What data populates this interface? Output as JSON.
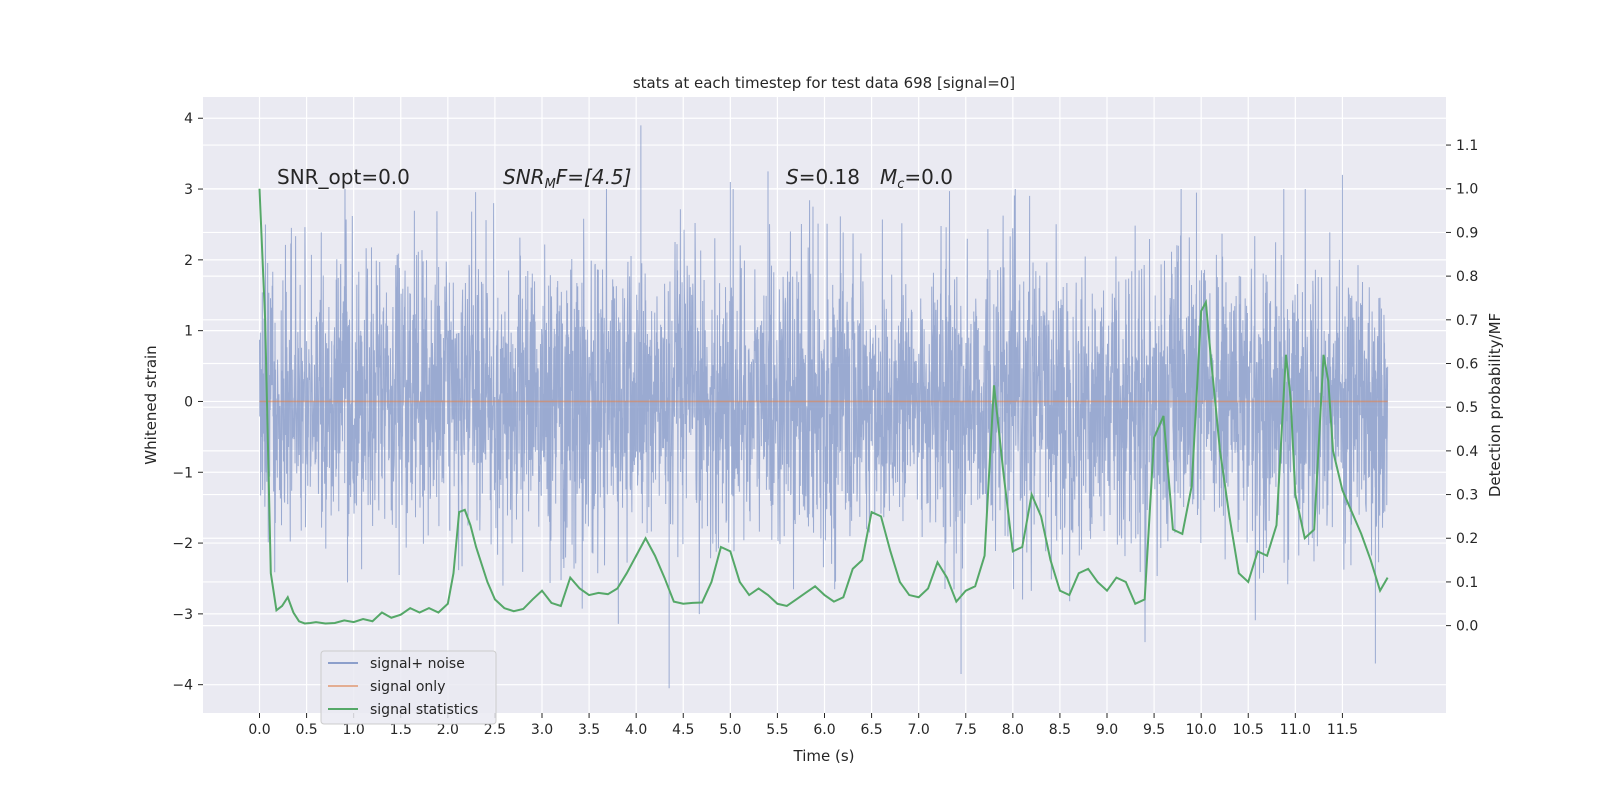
{
  "chart_data": {
    "type": "line",
    "title": "stats at each timestep for test data 698 [signal=0]",
    "xlabel": "Time (s)",
    "ylabel_left": "Whitened strain",
    "ylabel_right": "Detection probability/MF",
    "xlim": [
      -0.6,
      12.6
    ],
    "ylim_left": [
      -4.4,
      4.3
    ],
    "ylim_right": [
      -0.2,
      1.21
    ],
    "x_ticks": [
      "0.0",
      "0.5",
      "1.0",
      "1.5",
      "2.0",
      "2.5",
      "3.0",
      "3.5",
      "4.0",
      "4.5",
      "5.0",
      "5.5",
      "6.0",
      "6.5",
      "7.0",
      "7.5",
      "8.0",
      "8.5",
      "9.0",
      "9.5",
      "10.0",
      "10.5",
      "11.0",
      "11.5"
    ],
    "y_left_ticks": [
      "4",
      "3",
      "2",
      "1",
      "0",
      "−1",
      "−2",
      "−3",
      "−4"
    ],
    "y_right_ticks": [
      "1.1",
      "1.0",
      "0.9",
      "0.8",
      "0.7",
      "0.6",
      "0.5",
      "0.4",
      "0.3",
      "0.2",
      "0.1",
      "0.0"
    ],
    "annotations": {
      "snr_opt": "SNR_opt=0.0",
      "snr_mf_main": "SNR",
      "snr_mf_sub": "M",
      "snr_mf_rest": "F=[4.5]",
      "s_label": "S",
      "s_value": "=0.18",
      "mc_label": "M",
      "mc_sub": "c",
      "mc_value": "=0.0"
    },
    "legend": {
      "location": "lower-left",
      "entries": [
        "signal+ noise",
        "signal only",
        "signal statistics"
      ]
    },
    "colors": {
      "noise": "#8c9fcb",
      "signal_only": "#dd8452",
      "statistics": "#55a868",
      "background": "#eaeaf2",
      "grid": "#ffffff"
    },
    "series": [
      {
        "name": "signal+ noise",
        "axis": "left",
        "description_kind": "dense noise",
        "x_range": [
          0.0,
          11.98
        ],
        "typical_amplitude": 1.0,
        "extreme_peaks": [
          {
            "x": 4.05,
            "y": 3.9
          },
          {
            "x": 4.35,
            "y": -4.05
          },
          {
            "x": 5.4,
            "y": 3.25
          },
          {
            "x": 7.45,
            "y": -3.85
          },
          {
            "x": 11.85,
            "y": -3.7
          },
          {
            "x": 11.5,
            "y": 3.2
          },
          {
            "x": 9.95,
            "y": 2.95
          },
          {
            "x": 5.0,
            "y": 3.1
          }
        ]
      },
      {
        "name": "signal only",
        "axis": "left",
        "x": [
          0.0,
          11.98
        ],
        "y": [
          0.0,
          0.0
        ]
      },
      {
        "name": "signal statistics",
        "axis": "right",
        "x": [
          0.0,
          0.06,
          0.12,
          0.18,
          0.24,
          0.3,
          0.36,
          0.42,
          0.48,
          0.54,
          0.6,
          0.7,
          0.8,
          0.9,
          1.0,
          1.1,
          1.2,
          1.3,
          1.4,
          1.5,
          1.6,
          1.7,
          1.8,
          1.9,
          2.0,
          2.06,
          2.12,
          2.18,
          2.24,
          2.3,
          2.36,
          2.42,
          2.5,
          2.6,
          2.7,
          2.8,
          2.9,
          3.0,
          3.1,
          3.2,
          3.3,
          3.4,
          3.5,
          3.6,
          3.7,
          3.8,
          3.9,
          4.0,
          4.1,
          4.2,
          4.3,
          4.4,
          4.5,
          4.6,
          4.7,
          4.8,
          4.9,
          5.0,
          5.1,
          5.2,
          5.3,
          5.4,
          5.5,
          5.6,
          5.7,
          5.8,
          5.9,
          6.0,
          6.1,
          6.2,
          6.3,
          6.4,
          6.5,
          6.6,
          6.7,
          6.8,
          6.9,
          7.0,
          7.1,
          7.2,
          7.3,
          7.4,
          7.5,
          7.6,
          7.7,
          7.8,
          7.9,
          8.0,
          8.1,
          8.2,
          8.3,
          8.4,
          8.5,
          8.6,
          8.7,
          8.8,
          8.9,
          9.0,
          9.1,
          9.2,
          9.3,
          9.4,
          9.5,
          9.6,
          9.7,
          9.8,
          9.9,
          10.0,
          10.05,
          10.1,
          10.2,
          10.3,
          10.4,
          10.5,
          10.6,
          10.7,
          10.8,
          10.9,
          10.95,
          11.0,
          11.1,
          11.2,
          11.3,
          11.35,
          11.4,
          11.5,
          11.6,
          11.7,
          11.8,
          11.9,
          11.98
        ],
        "y": [
          1.0,
          0.7,
          0.12,
          0.035,
          0.045,
          0.065,
          0.03,
          0.01,
          0.005,
          0.006,
          0.008,
          0.005,
          0.006,
          0.012,
          0.008,
          0.015,
          0.01,
          0.03,
          0.018,
          0.025,
          0.04,
          0.03,
          0.04,
          0.03,
          0.05,
          0.12,
          0.26,
          0.265,
          0.23,
          0.18,
          0.14,
          0.1,
          0.06,
          0.04,
          0.033,
          0.038,
          0.06,
          0.08,
          0.052,
          0.045,
          0.11,
          0.085,
          0.07,
          0.075,
          0.072,
          0.085,
          0.12,
          0.16,
          0.2,
          0.16,
          0.11,
          0.055,
          0.05,
          0.052,
          0.053,
          0.1,
          0.18,
          0.17,
          0.1,
          0.07,
          0.085,
          0.07,
          0.05,
          0.045,
          0.06,
          0.075,
          0.09,
          0.07,
          0.055,
          0.065,
          0.13,
          0.15,
          0.26,
          0.25,
          0.17,
          0.1,
          0.07,
          0.065,
          0.085,
          0.145,
          0.11,
          0.055,
          0.08,
          0.09,
          0.16,
          0.55,
          0.35,
          0.17,
          0.18,
          0.3,
          0.25,
          0.15,
          0.08,
          0.07,
          0.12,
          0.13,
          0.1,
          0.08,
          0.11,
          0.1,
          0.05,
          0.06,
          0.43,
          0.48,
          0.22,
          0.21,
          0.32,
          0.72,
          0.74,
          0.62,
          0.4,
          0.25,
          0.12,
          0.1,
          0.17,
          0.16,
          0.23,
          0.62,
          0.52,
          0.3,
          0.2,
          0.22,
          0.62,
          0.56,
          0.4,
          0.31,
          0.26,
          0.21,
          0.15,
          0.08,
          0.11
        ]
      }
    ]
  }
}
